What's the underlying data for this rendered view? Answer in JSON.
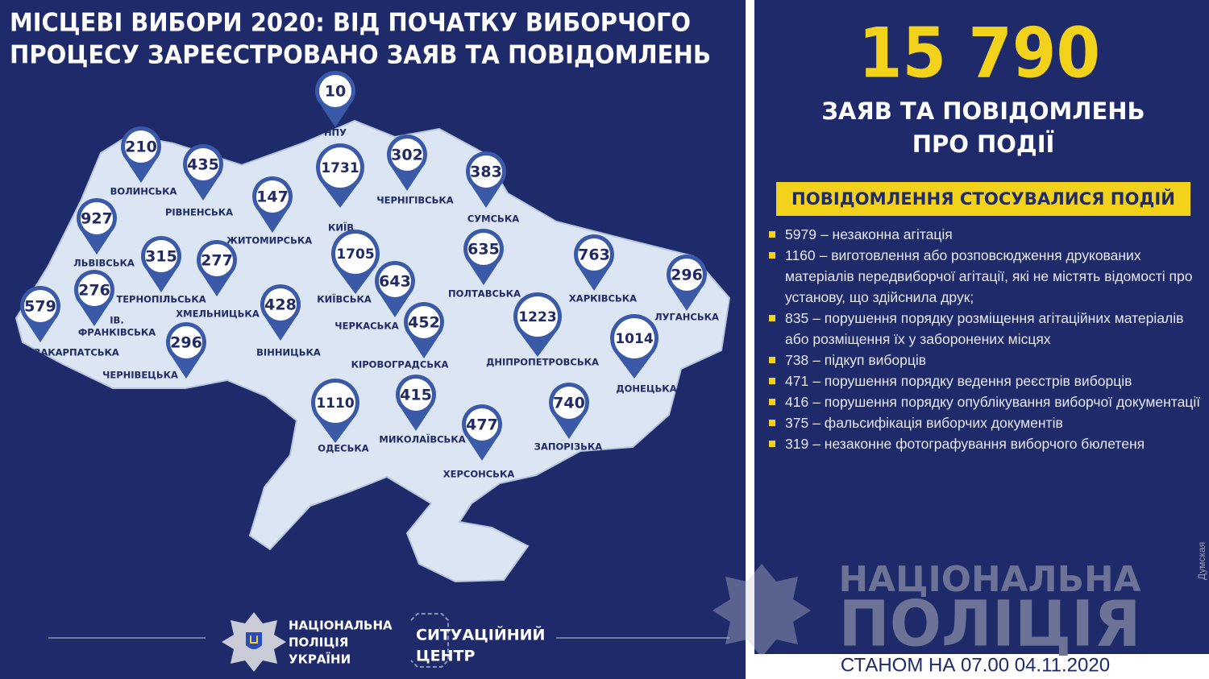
{
  "title": [
    "МІСЦЕВІ ВИБОРИ 2020: ВІД ПОЧАТКУ ВИБОРЧОГО",
    "ПРОЦЕСУ ЗАРЕЄСТРОВАНО ЗАЯВ ТА ПОВІДОМЛЕНЬ"
  ],
  "regions": [
    {
      "label": [
        "НПУ"
      ],
      "value": 10
    },
    {
      "label": [
        "ВОЛИНСЬКА"
      ],
      "value": 210
    },
    {
      "label": [
        "РІВНЕНСЬКА"
      ],
      "value": 435
    },
    {
      "label": [
        "ЖИТОМИРСЬКА"
      ],
      "value": 147
    },
    {
      "label": [
        "КИЇВ"
      ],
      "value": 1731
    },
    {
      "label": [
        "ЧЕРНІГІВСЬКА"
      ],
      "value": 302
    },
    {
      "label": [
        "СУМСЬКА"
      ],
      "value": 383
    },
    {
      "label": [
        "ЛЬВІВСЬКА"
      ],
      "value": 927
    },
    {
      "label": [
        "ТЕРНОПІЛЬСЬКА"
      ],
      "value": 315
    },
    {
      "label": [
        "ХМЕЛЬНИЦЬКА"
      ],
      "value": 277
    },
    {
      "label": [
        "КИЇВСЬКА"
      ],
      "value": 1705
    },
    {
      "label": [
        "ПОЛТАВСЬКА"
      ],
      "value": 635
    },
    {
      "label": [
        "ХАРКІВСЬКА"
      ],
      "value": 763
    },
    {
      "label": [
        "ЛУГАНСЬКА"
      ],
      "value": 296
    },
    {
      "label": [
        "ІВ.",
        "ФРАНКІВСЬКА"
      ],
      "value": 276
    },
    {
      "label": [
        "ЗАКАРПАТСЬКА"
      ],
      "value": 579
    },
    {
      "label": [
        "ВІННИЦЬКА"
      ],
      "value": 428
    },
    {
      "label": [
        "ЧЕРКАСЬКА"
      ],
      "value": 643
    },
    {
      "label": [
        "КІРОВОГРАДСЬКА"
      ],
      "value": 452
    },
    {
      "label": [
        "ДНІПРОПЕТРОВСЬКА"
      ],
      "value": 1223
    },
    {
      "label": [
        "ДОНЕЦЬКА"
      ],
      "value": 1014
    },
    {
      "label": [
        "ЧЕРНІВЕЦЬКА"
      ],
      "value": 296
    },
    {
      "label": [
        "ОДЕСЬКА"
      ],
      "value": 1110
    },
    {
      "label": [
        "МИКОЛАЇВСЬКА"
      ],
      "value": 415
    },
    {
      "label": [
        "ХЕРСОНСЬКА"
      ],
      "value": 477
    },
    {
      "label": [
        "ЗАПОРІЗЬКА"
      ],
      "value": 740
    }
  ],
  "logo_police": [
    "НАЦІОНАЛЬНА",
    "ПОЛІЦІЯ",
    "УКРАЇНИ"
  ],
  "logo_center": [
    "СИТУАЦІЙНИЙ",
    "ЦЕНТР"
  ],
  "total": "15 790",
  "total_caption": [
    "ЗАЯВ ТА ПОВІДОМЛЕНЬ",
    "ПРО ПОДІЇ"
  ],
  "banner": "ПОВІДОМЛЕННЯ СТОСУВАЛИСЯ ПОДІЙ",
  "items": [
    {
      "count": 5979,
      "text": "– незаконна агітація"
    },
    {
      "count": 1160,
      "text": "– виготовлення або розповсюдження друкованих матеріалів передвиборчої агітації, які не містять відомості про установу, що здійснила друк;"
    },
    {
      "count": 835,
      "text": "– порушення порядку розміщення агітаційних матеріалів або розміщення їх у заборонених місцях"
    },
    {
      "count": 738,
      "text": "– підкуп виборців"
    },
    {
      "count": 471,
      "text": "– порушення порядку ведення реєстрів виборців"
    },
    {
      "count": 416,
      "text": "– порушення порядку опублікування виборчої документації"
    },
    {
      "count": 375,
      "text": "– фальсифікація виборчих документів"
    },
    {
      "count": 319,
      "text": "– незаконне фотографування виборчого бюлетеня"
    }
  ],
  "watermark": [
    "НАЦІОНАЛЬНА",
    "ПОЛІЦІЯ"
  ],
  "date": "СТАНОМ НА 07.00 04.11.2020",
  "source": "Думская"
}
